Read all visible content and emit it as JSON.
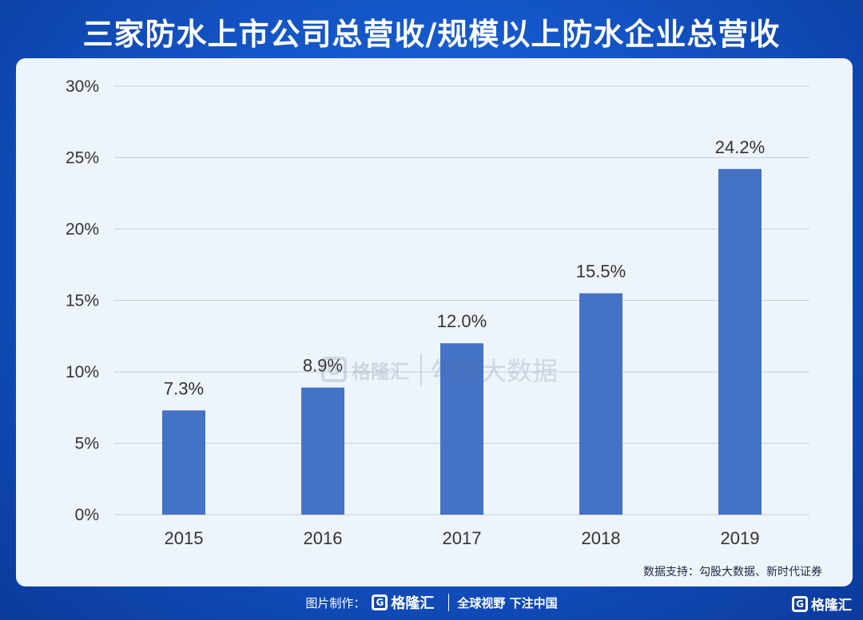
{
  "header": {
    "title": "三家防水上市公司总营收/规模以上防水企业总营收"
  },
  "chart_data": {
    "type": "bar",
    "categories": [
      "2015",
      "2016",
      "2017",
      "2018",
      "2019"
    ],
    "values": [
      7.3,
      8.9,
      12.0,
      15.5,
      24.2
    ],
    "value_labels": [
      "7.3%",
      "8.9%",
      "12.0%",
      "15.5%",
      "24.2%"
    ],
    "y_ticks": [
      0,
      5,
      10,
      15,
      20,
      25,
      30
    ],
    "y_tick_labels": [
      "0%",
      "5%",
      "10%",
      "15%",
      "20%",
      "25%",
      "30%"
    ],
    "ylim": [
      0,
      30
    ],
    "grid": true,
    "bar_color": "#4472c4"
  },
  "watermark": {
    "logo_letter": "G",
    "brand": "格隆汇",
    "text": "勾股大数据"
  },
  "source": "数据支持：勾股大数据、新时代证券",
  "footer": {
    "made_by": "图片制作：",
    "logo_letter": "G",
    "brand": "格隆汇",
    "slogan": "全球视野 下注中国"
  },
  "corner": {
    "logo_letter": "G",
    "brand": "格隆汇"
  },
  "colors": {
    "background": "#1456c8",
    "panel": "#eef4fb",
    "bar": "#4472c4",
    "grid": "#c9ced6",
    "text": "#333333"
  }
}
